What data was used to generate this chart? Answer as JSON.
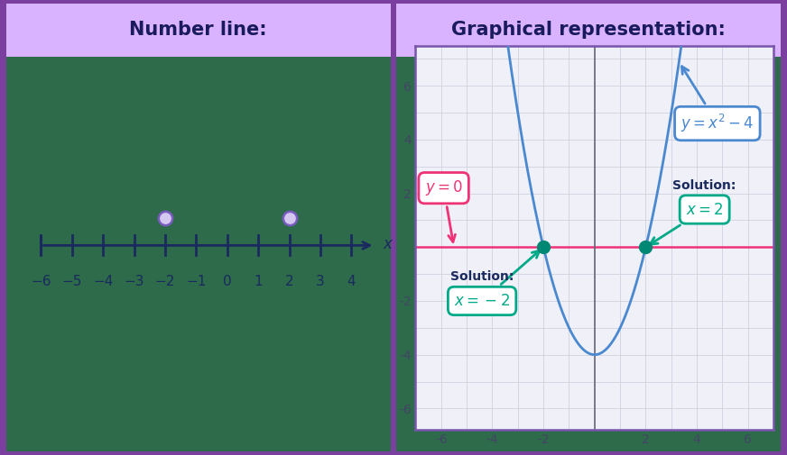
{
  "title_left": "Number line:",
  "title_right": "Graphical representation:",
  "header_bg": "#d9b3ff",
  "header_text_color": "#1a1a5e",
  "panel_bg": "#2d6b4a",
  "outer_bg": "#7b3fa0",
  "number_line_points": [
    -2,
    2
  ],
  "nl_point_fill": "#d4c8f0",
  "nl_point_edge": "#7a5cc0",
  "nl_axis_color": "#1a2a5e",
  "graph_xlim": [
    -7,
    7
  ],
  "graph_ylim": [
    -6.8,
    7.5
  ],
  "graph_bg": "#f0f0f8",
  "graph_border_color": "#7755aa",
  "parabola_color": "#4a88d0",
  "xaxis_line_color": "#ee3377",
  "yaxis_line_color": "#666677",
  "roots": [
    -2,
    2
  ],
  "root_dot_color": "#008875",
  "y0_box_color": "#ee3377",
  "func_box_color": "#4a88d0",
  "sol_box_color": "#00aa88",
  "sol_text_color": "#00aa88",
  "sol_label_color": "#1a2a5e",
  "grid_color": "#d0d0e0",
  "tick_label_color": "#444466",
  "annotation_font_size": 12,
  "sol_label_font_size": 10
}
